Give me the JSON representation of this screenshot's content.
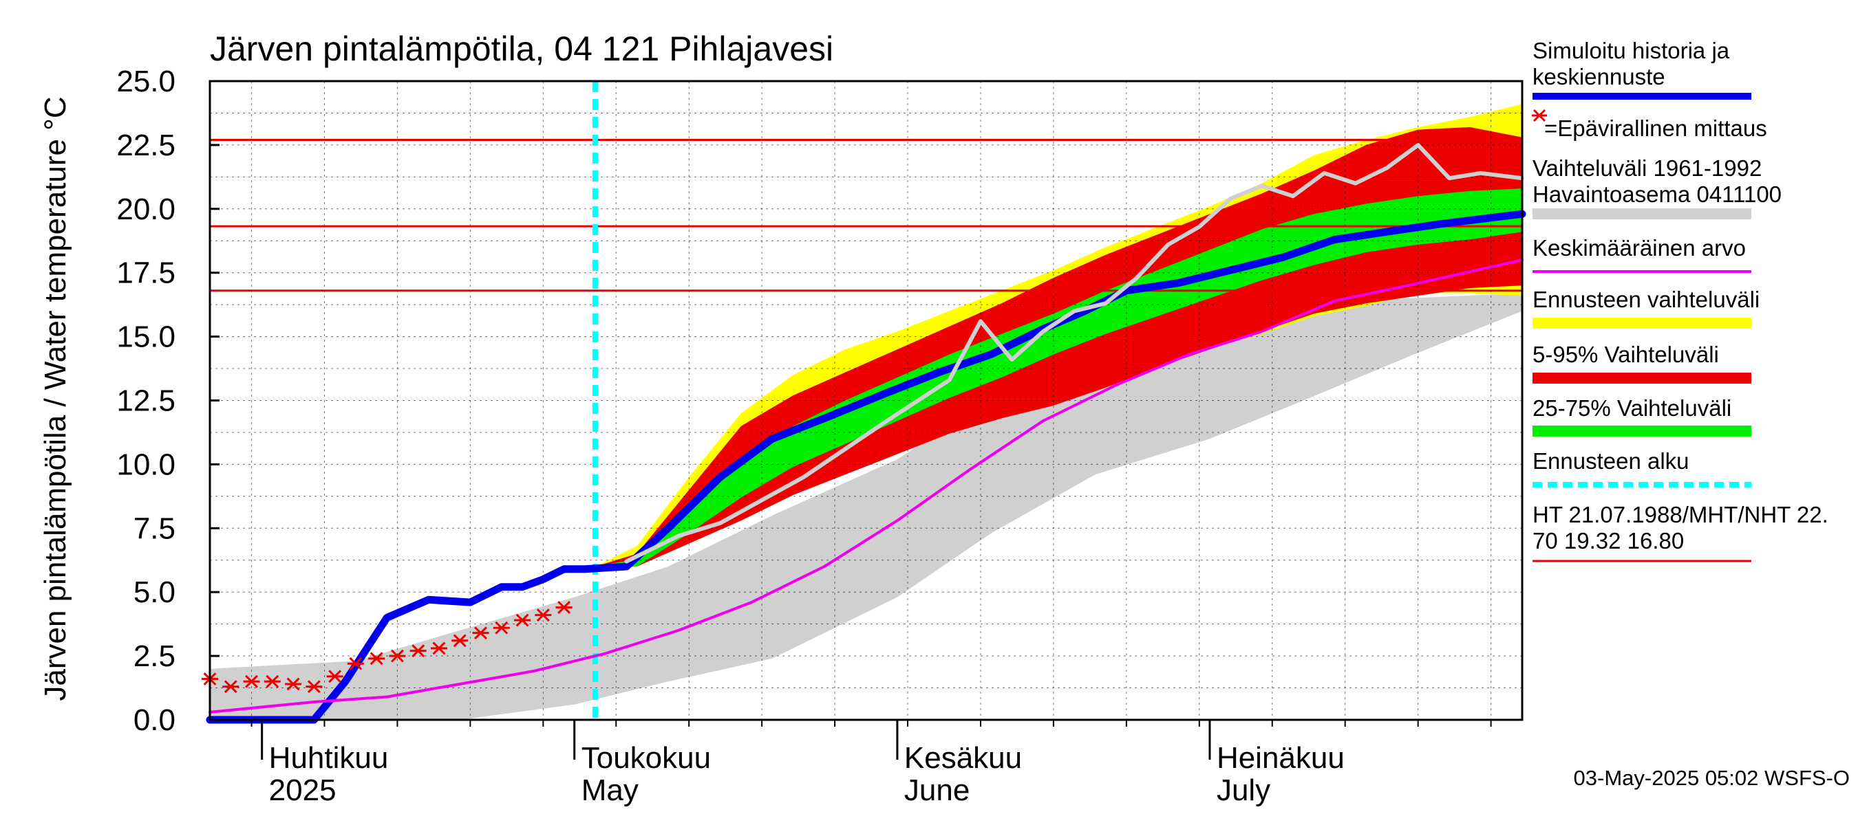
{
  "chart_data": {
    "type": "area",
    "title": "Järven pintalämpötila, 04 121 Pihlajavesi",
    "ylabel": "Järven pintalämpötila / Water temperature °C",
    "ylim": [
      0,
      25
    ],
    "y_ticks": [
      "0.0",
      "2.5",
      "5.0",
      "7.5",
      "10.0",
      "12.5",
      "15.0",
      "17.5",
      "20.0",
      "22.5",
      "25.0"
    ],
    "xlim": [
      "2025-03-27",
      "2025-07-31"
    ],
    "months": [
      {
        "label_fi": "Huhtikuu",
        "label_en": "2025",
        "date": "2025-04-01"
      },
      {
        "label_fi": "Toukokuu",
        "label_en": "May",
        "date": "2025-05-01"
      },
      {
        "label_fi": "Kesäkuu",
        "label_en": "June",
        "date": "2025-06-01"
      },
      {
        "label_fi": "Heinäkuu",
        "label_en": "July",
        "date": "2025-07-01"
      }
    ],
    "forecast_start": "2025-05-03",
    "reference_lines": [
      22.7,
      19.32,
      16.8
    ],
    "colors": {
      "simulated": "#0000ee",
      "mean": "#ee00ee",
      "observed_history": "#d0d0d0",
      "forecast_range": "#ffff00",
      "p5_95": "#ee0000",
      "p25_75": "#00ee00",
      "forecast_start": "#00ffff",
      "reference": "#ee0000",
      "measurement": "#ee0000"
    },
    "series": [
      {
        "name": "Simuloitu historia ja keskiennuste",
        "key": "simulated",
        "x": [
          "2025-03-27",
          "2025-04-06",
          "2025-04-09",
          "2025-04-13",
          "2025-04-17",
          "2025-04-21",
          "2025-04-24",
          "2025-04-26",
          "2025-04-28",
          "2025-04-30",
          "2025-05-02",
          "2025-05-06",
          "2025-05-10",
          "2025-05-15",
          "2025-05-20",
          "2025-05-25",
          "2025-05-31",
          "2025-06-05",
          "2025-06-10",
          "2025-06-15",
          "2025-06-19",
          "2025-06-23",
          "2025-06-28",
          "2025-07-03",
          "2025-07-08",
          "2025-07-13",
          "2025-07-18",
          "2025-07-23",
          "2025-07-31"
        ],
        "y": [
          0.0,
          0.0,
          1.5,
          4.0,
          4.7,
          4.6,
          5.2,
          5.2,
          5.5,
          5.9,
          5.9,
          6.0,
          7.5,
          9.5,
          11.0,
          11.8,
          12.8,
          13.6,
          14.3,
          15.3,
          16.0,
          16.8,
          17.1,
          17.6,
          18.1,
          18.8,
          19.1,
          19.4,
          19.8
        ]
      },
      {
        "name": "Keskimääräinen arvo",
        "key": "mean",
        "x": [
          "2025-03-27",
          "2025-04-06",
          "2025-04-13",
          "2025-04-20",
          "2025-04-27",
          "2025-05-04",
          "2025-05-11",
          "2025-05-18",
          "2025-05-25",
          "2025-06-01",
          "2025-06-08",
          "2025-06-15",
          "2025-06-22",
          "2025-06-29",
          "2025-07-06",
          "2025-07-13",
          "2025-07-20",
          "2025-07-31"
        ],
        "y": [
          0.3,
          0.7,
          0.9,
          1.4,
          1.9,
          2.6,
          3.5,
          4.6,
          6.0,
          7.8,
          9.8,
          11.7,
          13.1,
          14.3,
          15.2,
          16.4,
          17.0,
          18.0
        ]
      },
      {
        "name": "Havaintoasema 0411100",
        "key": "observed",
        "x": [
          "2025-05-06",
          "2025-05-11",
          "2025-05-15",
          "2025-05-19",
          "2025-05-23",
          "2025-05-27",
          "2025-05-31",
          "2025-06-03",
          "2025-06-06",
          "2025-06-09",
          "2025-06-12",
          "2025-06-15",
          "2025-06-18",
          "2025-06-21",
          "2025-06-24",
          "2025-06-27",
          "2025-06-30",
          "2025-07-03",
          "2025-07-06",
          "2025-07-09",
          "2025-07-12",
          "2025-07-15",
          "2025-07-18",
          "2025-07-21",
          "2025-07-24",
          "2025-07-27",
          "2025-07-31"
        ],
        "y": [
          6.2,
          7.2,
          7.7,
          8.6,
          9.5,
          10.6,
          11.7,
          12.5,
          13.3,
          15.6,
          14.1,
          15.2,
          16.0,
          16.3,
          17.3,
          18.6,
          19.3,
          20.4,
          20.9,
          20.5,
          21.4,
          21.0,
          21.6,
          22.5,
          21.2,
          21.4,
          21.2
        ]
      },
      {
        "name": "=Epävirallinen mittaus",
        "key": "measurement",
        "x": [
          "2025-03-27",
          "2025-03-29",
          "2025-03-31",
          "2025-04-02",
          "2025-04-04",
          "2025-04-06",
          "2025-04-08",
          "2025-04-10",
          "2025-04-12",
          "2025-04-14",
          "2025-04-16",
          "2025-04-18",
          "2025-04-20",
          "2025-04-22",
          "2025-04-24",
          "2025-04-26",
          "2025-04-28",
          "2025-04-30"
        ],
        "y": [
          1.6,
          1.3,
          1.5,
          1.5,
          1.4,
          1.3,
          1.7,
          2.2,
          2.4,
          2.5,
          2.7,
          2.8,
          3.1,
          3.4,
          3.6,
          3.9,
          4.1,
          4.4
        ]
      }
    ],
    "bands": [
      {
        "name": "Vaihteluväli 1961-1992",
        "key": "history_range",
        "x": [
          "2025-03-27",
          "2025-04-10",
          "2025-04-20",
          "2025-05-01",
          "2025-05-10",
          "2025-05-20",
          "2025-06-01",
          "2025-06-10",
          "2025-06-20",
          "2025-07-01",
          "2025-07-10",
          "2025-07-20",
          "2025-07-31"
        ],
        "lower": [
          0.0,
          0.0,
          0.0,
          0.6,
          1.5,
          2.4,
          4.8,
          7.3,
          9.6,
          11.0,
          12.5,
          14.2,
          16.0
        ],
        "upper": [
          2.0,
          2.3,
          3.5,
          4.8,
          6.0,
          8.0,
          10.2,
          12.6,
          13.8,
          15.3,
          16.2,
          16.5,
          16.7
        ]
      },
      {
        "name": "Ennusteen vaihteluväli",
        "key": "forecast_range",
        "x": [
          "2025-05-03",
          "2025-05-07",
          "2025-05-12",
          "2025-05-17",
          "2025-05-22",
          "2025-05-27",
          "2025-06-01",
          "2025-06-06",
          "2025-06-11",
          "2025-06-16",
          "2025-06-21",
          "2025-06-26",
          "2025-07-01",
          "2025-07-06",
          "2025-07-11",
          "2025-07-16",
          "2025-07-21",
          "2025-07-26",
          "2025-07-31"
        ],
        "lower": [
          5.9,
          6.0,
          7.0,
          8.3,
          9.2,
          10.0,
          11.0,
          11.6,
          12.1,
          12.5,
          13.2,
          13.9,
          14.6,
          15.1,
          15.8,
          16.2,
          16.7,
          16.7,
          16.6
        ],
        "upper": [
          6.0,
          6.8,
          9.5,
          12.0,
          13.5,
          14.5,
          15.2,
          16.0,
          16.8,
          17.6,
          18.5,
          19.3,
          20.1,
          21.0,
          22.1,
          22.7,
          23.2,
          23.6,
          24.1
        ]
      },
      {
        "name": "5-95% Vaihteluväli",
        "key": "p5_95",
        "x": [
          "2025-05-03",
          "2025-05-07",
          "2025-05-12",
          "2025-05-17",
          "2025-05-22",
          "2025-05-27",
          "2025-06-01",
          "2025-06-06",
          "2025-06-11",
          "2025-06-16",
          "2025-06-21",
          "2025-06-26",
          "2025-07-01",
          "2025-07-06",
          "2025-07-11",
          "2025-07-16",
          "2025-07-21",
          "2025-07-26",
          "2025-07-31"
        ],
        "lower": [
          5.9,
          6.0,
          6.9,
          7.8,
          8.8,
          9.6,
          10.4,
          11.2,
          11.8,
          12.3,
          13.0,
          13.8,
          14.5,
          15.2,
          15.9,
          16.3,
          16.6,
          16.9,
          17.0
        ],
        "upper": [
          6.0,
          6.5,
          9.0,
          11.5,
          12.7,
          13.6,
          14.5,
          15.4,
          16.3,
          17.3,
          18.2,
          19.0,
          19.8,
          20.6,
          21.5,
          22.5,
          23.1,
          23.2,
          22.8
        ]
      },
      {
        "name": "25-75% Vaihteluväli",
        "key": "p25_75",
        "x": [
          "2025-05-03",
          "2025-05-07",
          "2025-05-12",
          "2025-05-17",
          "2025-05-22",
          "2025-05-27",
          "2025-06-01",
          "2025-06-06",
          "2025-06-11",
          "2025-06-16",
          "2025-06-21",
          "2025-06-26",
          "2025-07-01",
          "2025-07-06",
          "2025-07-11",
          "2025-07-16",
          "2025-07-21",
          "2025-07-26",
          "2025-07-31"
        ],
        "lower": [
          5.9,
          6.0,
          7.3,
          8.7,
          9.9,
          10.8,
          11.7,
          12.6,
          13.4,
          14.3,
          15.1,
          15.8,
          16.5,
          17.2,
          17.8,
          18.3,
          18.6,
          18.8,
          19.1
        ],
        "upper": [
          6.0,
          6.3,
          8.2,
          10.1,
          11.5,
          12.5,
          13.4,
          14.3,
          15.1,
          15.9,
          16.8,
          17.6,
          18.4,
          19.2,
          19.8,
          20.2,
          20.5,
          20.7,
          20.8
        ]
      }
    ],
    "legend": [
      {
        "text": [
          "Simuloitu historia ja",
          "keskiennuste"
        ],
        "key": "simulated"
      },
      {
        "text": [
          "=Epävirallinen mittaus"
        ],
        "key": "measurement"
      },
      {
        "text": [
          "Vaihteluväli 1961-1992",
          " Havaintoasema 0411100"
        ],
        "key": "history_range"
      },
      {
        "text": [
          "Keskimääräinen arvo"
        ],
        "key": "mean"
      },
      {
        "text": [
          "Ennusteen vaihteluväli"
        ],
        "key": "forecast_range"
      },
      {
        "text": [
          "5-95% Vaihteluväli"
        ],
        "key": "p5_95"
      },
      {
        "text": [
          "25-75% Vaihteluväli"
        ],
        "key": "p25_75"
      },
      {
        "text": [
          "Ennusteen alku"
        ],
        "key": "forecast_start"
      },
      {
        "text": [
          "HT 21.07.1988/MHT/NHT 22.",
          "70 19.32 16.80"
        ],
        "key": "reference"
      }
    ],
    "legend_placement": "right",
    "grid": true,
    "footer": "03-May-2025 05:02 WSFS-O"
  }
}
